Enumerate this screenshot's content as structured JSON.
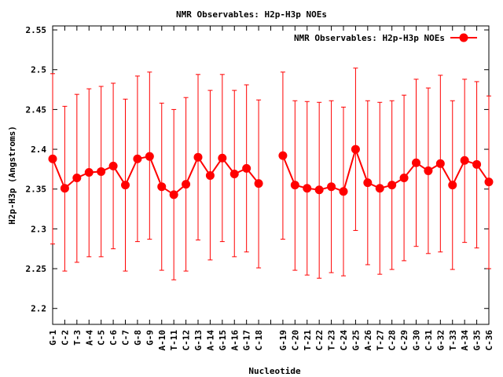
{
  "chart_data": {
    "type": "line",
    "title": "NMR Observables: H2p-H3p NOEs",
    "xlabel": "Nucleotide",
    "ylabel": "H2p-H3p (Angstroms)",
    "ylim": [
      2.18,
      2.555
    ],
    "y_ticks": [
      2.2,
      2.25,
      2.3,
      2.35,
      2.4,
      2.45,
      2.5,
      2.55
    ],
    "y_tick_labels": [
      "2.2",
      "2.25",
      "2.3",
      "2.35",
      "2.4",
      "2.45",
      "2.5",
      "2.55"
    ],
    "grid": false,
    "legend": {
      "position": "top-right"
    },
    "series_color": "#ff0000",
    "series": [
      {
        "name": "NMR Observables: H2p-H3p NOEs",
        "segments": [
          [
            {
              "x": "G-1",
              "y": 2.388,
              "low": 2.281,
              "high": 2.495
            },
            {
              "x": "C-2",
              "y": 2.351,
              "low": 2.247,
              "high": 2.454
            },
            {
              "x": "T-3",
              "y": 2.364,
              "low": 2.258,
              "high": 2.469
            },
            {
              "x": "A-4",
              "y": 2.371,
              "low": 2.265,
              "high": 2.476
            },
            {
              "x": "C-5",
              "y": 2.372,
              "low": 2.265,
              "high": 2.479
            },
            {
              "x": "C-6",
              "y": 2.379,
              "low": 2.275,
              "high": 2.483
            },
            {
              "x": "C-7",
              "y": 2.355,
              "low": 2.247,
              "high": 2.463
            },
            {
              "x": "G-8",
              "y": 2.388,
              "low": 2.284,
              "high": 2.492
            },
            {
              "x": "G-9",
              "y": 2.391,
              "low": 2.287,
              "high": 2.497
            },
            {
              "x": "A-10",
              "y": 2.353,
              "low": 2.248,
              "high": 2.458
            },
            {
              "x": "T-11",
              "y": 2.343,
              "low": 2.236,
              "high": 2.45
            },
            {
              "x": "C-12",
              "y": 2.356,
              "low": 2.247,
              "high": 2.465
            },
            {
              "x": "G-13",
              "y": 2.39,
              "low": 2.286,
              "high": 2.494
            },
            {
              "x": "A-14",
              "y": 2.367,
              "low": 2.261,
              "high": 2.474
            },
            {
              "x": "G-15",
              "y": 2.389,
              "low": 2.284,
              "high": 2.494
            },
            {
              "x": "A-16",
              "y": 2.369,
              "low": 2.265,
              "high": 2.474
            },
            {
              "x": "G-17",
              "y": 2.376,
              "low": 2.271,
              "high": 2.481
            },
            {
              "x": "C-18",
              "y": 2.357,
              "low": 2.251,
              "high": 2.462
            }
          ],
          [
            {
              "x": "G-19",
              "y": 2.392,
              "low": 2.287,
              "high": 2.497
            },
            {
              "x": "C-20",
              "y": 2.355,
              "low": 2.248,
              "high": 2.461
            },
            {
              "x": "T-21",
              "y": 2.351,
              "low": 2.242,
              "high": 2.46
            },
            {
              "x": "C-22",
              "y": 2.349,
              "low": 2.238,
              "high": 2.459
            },
            {
              "x": "T-23",
              "y": 2.353,
              "low": 2.245,
              "high": 2.461
            },
            {
              "x": "C-24",
              "y": 2.347,
              "low": 2.241,
              "high": 2.453
            },
            {
              "x": "G-25",
              "y": 2.4,
              "low": 2.298,
              "high": 2.502
            },
            {
              "x": "A-26",
              "y": 2.358,
              "low": 2.255,
              "high": 2.461
            },
            {
              "x": "T-27",
              "y": 2.351,
              "low": 2.243,
              "high": 2.459
            },
            {
              "x": "C-28",
              "y": 2.355,
              "low": 2.249,
              "high": 2.461
            },
            {
              "x": "C-29",
              "y": 2.364,
              "low": 2.26,
              "high": 2.468
            },
            {
              "x": "G-30",
              "y": 2.383,
              "low": 2.278,
              "high": 2.488
            },
            {
              "x": "C-31",
              "y": 2.373,
              "low": 2.269,
              "high": 2.477
            },
            {
              "x": "G-32",
              "y": 2.382,
              "low": 2.271,
              "high": 2.493
            },
            {
              "x": "T-33",
              "y": 2.355,
              "low": 2.249,
              "high": 2.461
            },
            {
              "x": "A-34",
              "y": 2.386,
              "low": 2.283,
              "high": 2.488
            },
            {
              "x": "G-35",
              "y": 2.381,
              "low": 2.276,
              "high": 2.485
            },
            {
              "x": "C-36",
              "y": 2.359,
              "low": 2.25,
              "high": 2.467
            }
          ]
        ]
      }
    ],
    "categories": [
      "G-1",
      "C-2",
      "T-3",
      "A-4",
      "C-5",
      "C-6",
      "C-7",
      "G-8",
      "G-9",
      "A-10",
      "T-11",
      "C-12",
      "G-13",
      "A-14",
      "G-15",
      "A-16",
      "G-17",
      "C-18",
      "",
      "G-19",
      "C-20",
      "T-21",
      "C-22",
      "T-23",
      "C-24",
      "G-25",
      "A-26",
      "T-27",
      "C-28",
      "C-29",
      "G-30",
      "C-31",
      "G-32",
      "T-33",
      "A-34",
      "G-35",
      "C-36"
    ]
  }
}
